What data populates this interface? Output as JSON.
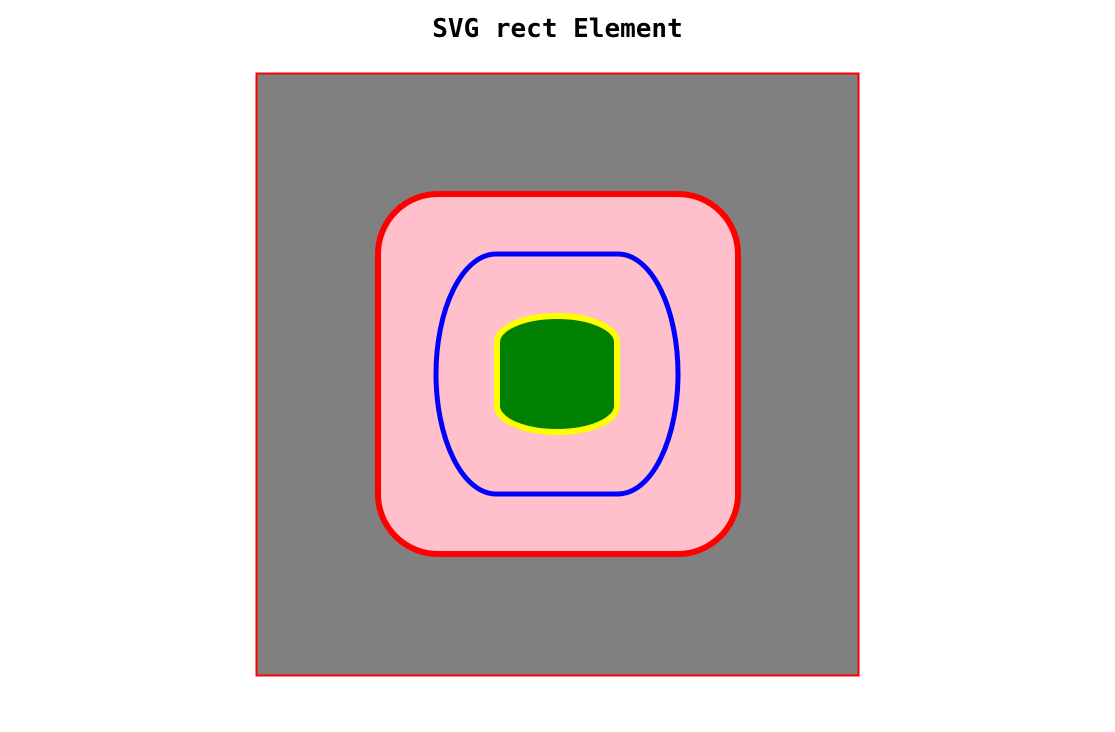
{
  "title": "SVG rect Element",
  "colors": {
    "background": "#808080",
    "border": "#ff0000",
    "outer_fill": "#ffc0cb",
    "outer_stroke": "#ff0000",
    "middle_stroke": "#0000ff",
    "inner_fill": "#008000",
    "inner_stroke": "#ffff00"
  },
  "shapes": [
    {
      "name": "background-rect",
      "fill": "gray",
      "stroke": "red"
    },
    {
      "name": "outer-rounded-rect",
      "fill": "pink",
      "stroke": "red"
    },
    {
      "name": "middle-rounded-rect",
      "fill": "none",
      "stroke": "blue"
    },
    {
      "name": "inner-rounded-rect",
      "fill": "green",
      "stroke": "yellow"
    }
  ]
}
